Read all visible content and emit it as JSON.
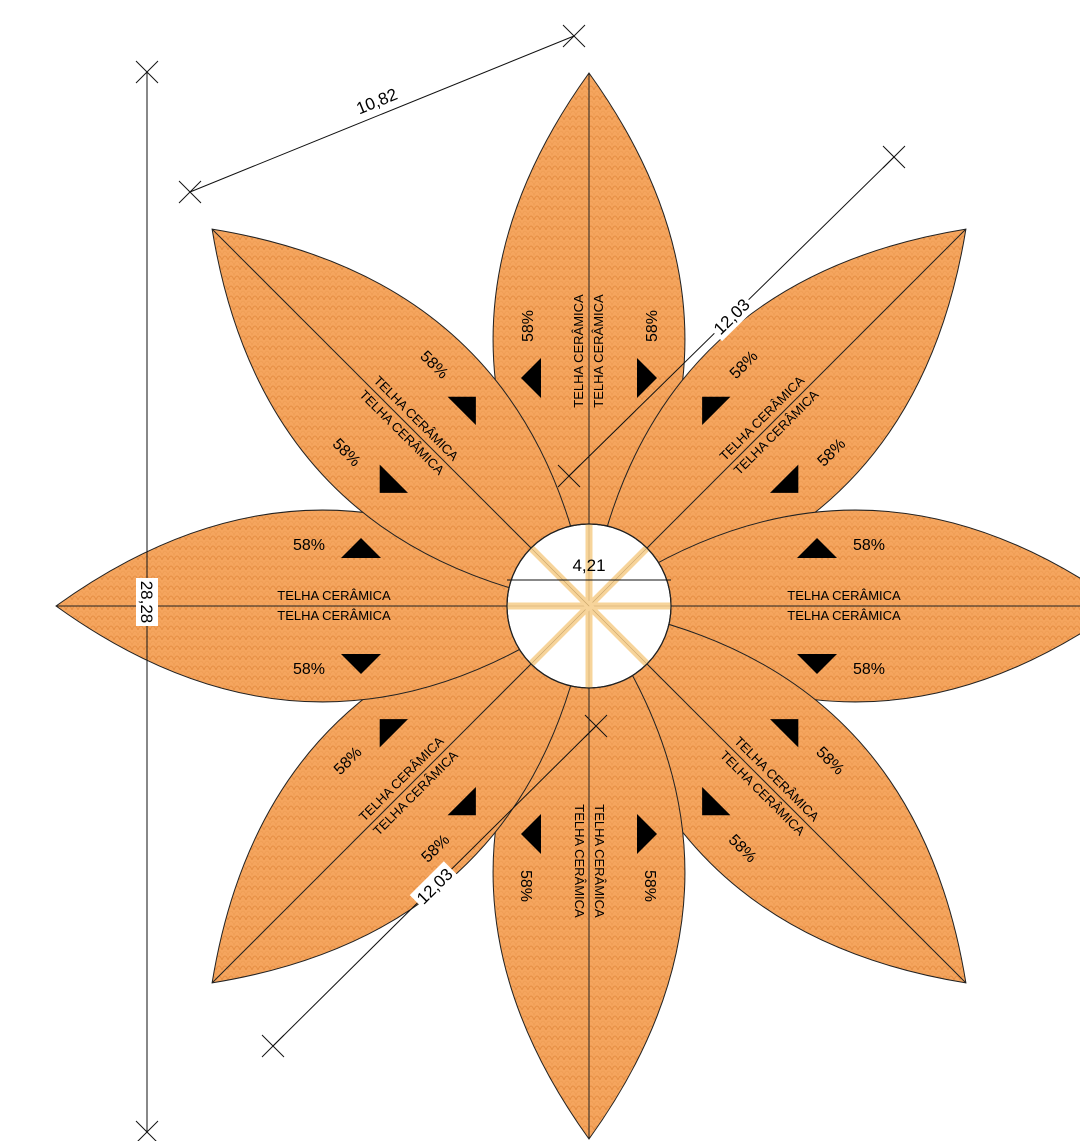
{
  "colors": {
    "tile": "#f5a55e",
    "tile_texture": "#e58e43",
    "outline": "#222222",
    "beam": "#f7d49a",
    "arrow": "#000000"
  },
  "dimensions": {
    "top_width": "10,82",
    "total_height": "28,28",
    "diagonal_upper": "12,03",
    "diagonal_lower": "12,03",
    "center_diameter": "4,21"
  },
  "petals": [
    {
      "label_a": "TELHA CERÂMICA",
      "label_b": "TELHA CERÂMICA",
      "slope_a": "58%",
      "slope_b": "58%"
    },
    {
      "label_a": "TELHA CERÂMICA",
      "label_b": "TELHA CERÂMICA",
      "slope_a": "58%",
      "slope_b": "58%"
    },
    {
      "label_a": "TELHA CERÂMICA",
      "label_b": "TELHA CERÂMICA",
      "slope_a": "58%",
      "slope_b": "58%"
    },
    {
      "label_a": "TELHA CERÂMICA",
      "label_b": "TELHA CERÂMICA",
      "slope_a": "58%",
      "slope_b": "58%"
    },
    {
      "label_a": "TELHA CERÂMICA",
      "label_b": "TELHA CERÂMICA",
      "slope_a": "58%",
      "slope_b": "58%"
    },
    {
      "label_a": "TELHA CERÂMICA",
      "label_b": "TELHA CERÂMICA",
      "slope_a": "58%",
      "slope_b": "58%"
    },
    {
      "label_a": "TELHA CERÂMICA",
      "label_b": "TELHA CERÂMICA",
      "slope_a": "58%",
      "slope_b": "58%"
    },
    {
      "label_a": "TELHA CERÂMICA",
      "label_b": "TELHA CERÂMICA",
      "slope_a": "58%",
      "slope_b": "58%"
    }
  ]
}
